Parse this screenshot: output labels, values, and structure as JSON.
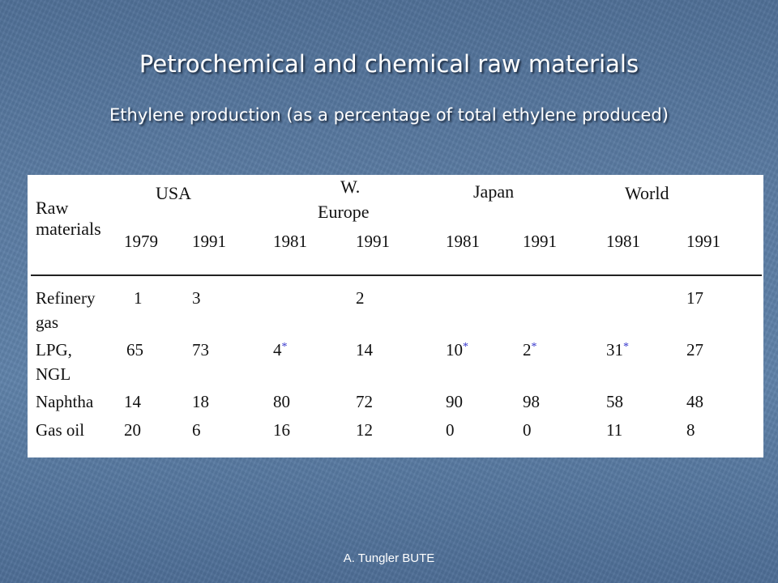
{
  "slide": {
    "title": "Petrochemical and chemical raw materials",
    "subtitle": "Ethylene production (as a percentage of total ethylene produced)",
    "footer": "A. Tungler BUTE"
  },
  "table": {
    "raw_header": [
      "Raw",
      "materials"
    ],
    "regions": [
      "USA",
      "W.",
      "Europe",
      "Japan",
      "World"
    ],
    "years": [
      "1979",
      "1991",
      "1981",
      "1991",
      "1981",
      "1991",
      "1981",
      "1991"
    ],
    "rows": [
      {
        "name": [
          "Refinery",
          "gas"
        ],
        "values": [
          "1",
          "3",
          "",
          "2",
          "",
          "",
          "",
          "17"
        ]
      },
      {
        "name": [
          "LPG,",
          "NGL"
        ],
        "values": [
          "65",
          "73",
          "4",
          "14",
          "10",
          "2",
          "31",
          "27"
        ]
      },
      {
        "name": [
          "Naphtha"
        ],
        "values": [
          "14",
          "18",
          "80",
          "72",
          "90",
          "98",
          "58",
          "48"
        ]
      },
      {
        "name": [
          "Gas oil"
        ],
        "values": [
          "20",
          "6",
          "16",
          "12",
          "0",
          "0",
          "11",
          "8"
        ]
      }
    ],
    "asterisk": "*"
  }
}
